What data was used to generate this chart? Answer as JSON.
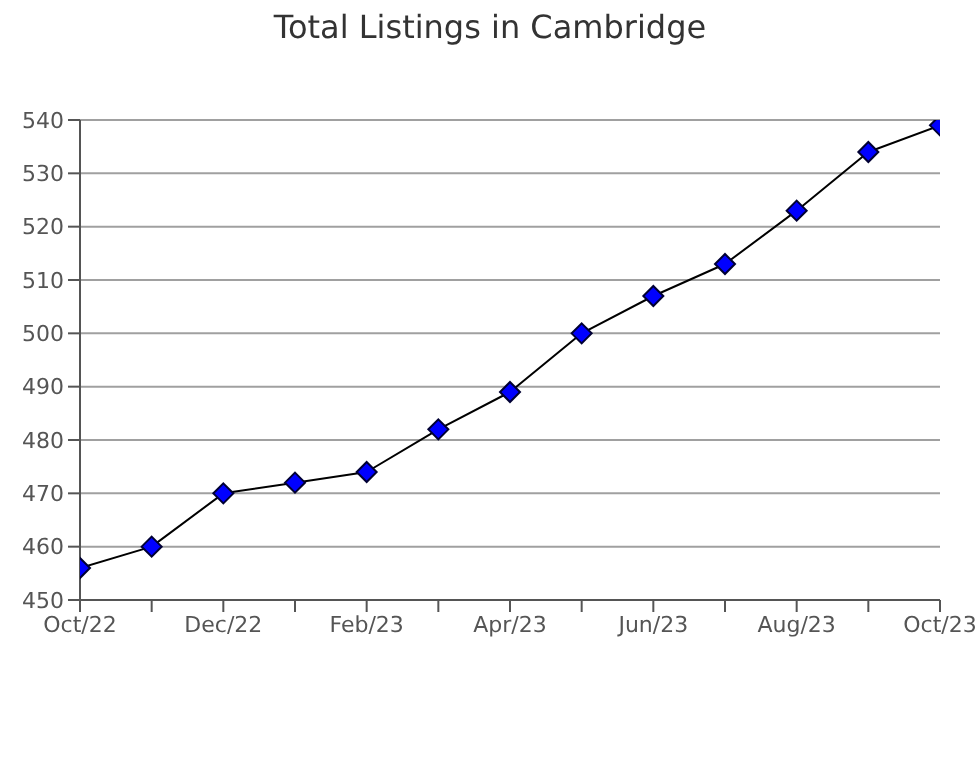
{
  "chart_data": {
    "type": "line",
    "title": "Total Listings in Cambridge",
    "categories": [
      "Oct/22",
      null,
      "Dec/22",
      null,
      "Feb/23",
      null,
      "Apr/23",
      null,
      "Jun/23",
      null,
      "Aug/23",
      null,
      "Oct/23"
    ],
    "series": [
      {
        "color": "#0000ff",
        "values": [
          456,
          460,
          470,
          472,
          474,
          482,
          489,
          500,
          507,
          513,
          523,
          534,
          539
        ]
      }
    ],
    "ylim": [
      450,
      540
    ],
    "yticks": [
      450,
      460,
      470,
      480,
      490,
      500,
      510,
      520,
      530,
      540
    ],
    "grid": "y",
    "marker": "diamond",
    "line_style": "solid"
  }
}
